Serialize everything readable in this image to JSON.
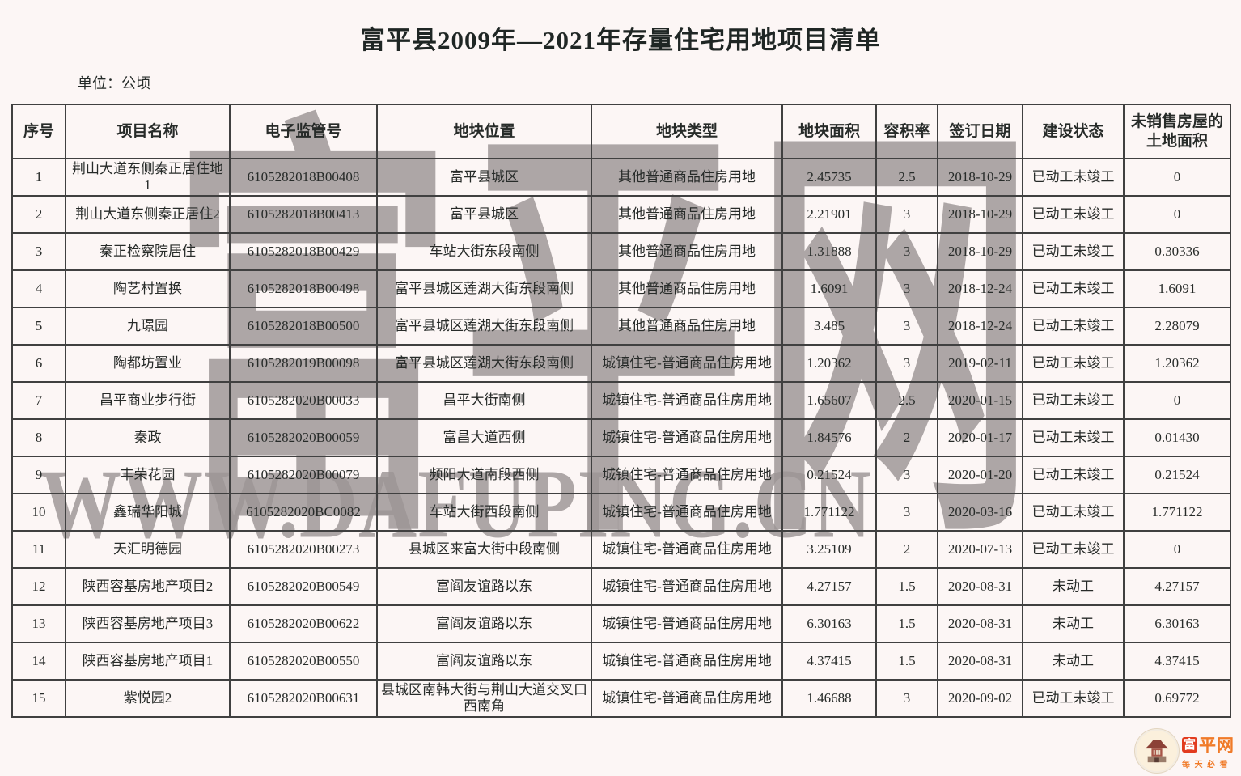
{
  "page": {
    "title": "富平县2009年—2021年存量住宅用地项目清单",
    "unit_label": "单位：公顷"
  },
  "watermark": {
    "cn_text": "富平网",
    "url_text": "WWW.DAFUPING.CN"
  },
  "logo": {
    "site_name_first": "富",
    "site_name_rest": "平网",
    "tagline": "每天必看"
  },
  "colors": {
    "background": "#fcf6f5",
    "table_border": "#404040",
    "text": "#272b29",
    "watermark_gray": "#9c9595",
    "logo_orange": "#f07a28",
    "logo_red": "#e23b1f"
  },
  "table": {
    "headers": [
      "序号",
      "项目名称",
      "电子监管号",
      "地块位置",
      "地块类型",
      "地块面积",
      "容积率",
      "签订日期",
      "建设状态",
      "未销售房屋的土地面积"
    ],
    "rows": [
      [
        "1",
        "荆山大道东侧秦正居住地1",
        "6105282018B00408",
        "富平县城区",
        "其他普通商品住房用地",
        "2.45735",
        "2.5",
        "2018-10-29",
        "已动工未竣工",
        "0"
      ],
      [
        "2",
        "荆山大道东侧秦正居住2",
        "6105282018B00413",
        "富平县城区",
        "其他普通商品住房用地",
        "2.21901",
        "3",
        "2018-10-29",
        "已动工未竣工",
        "0"
      ],
      [
        "3",
        "秦正检察院居住",
        "6105282018B00429",
        "车站大街东段南侧",
        "其他普通商品住房用地",
        "1.31888",
        "3",
        "2018-10-29",
        "已动工未竣工",
        "0.30336"
      ],
      [
        "4",
        "陶艺村置换",
        "6105282018B00498",
        "富平县城区莲湖大街东段南侧",
        "其他普通商品住房用地",
        "1.6091",
        "3",
        "2018-12-24",
        "已动工未竣工",
        "1.6091"
      ],
      [
        "5",
        "九璟园",
        "6105282018B00500",
        "富平县城区莲湖大街东段南侧",
        "其他普通商品住房用地",
        "3.485",
        "3",
        "2018-12-24",
        "已动工未竣工",
        "2.28079"
      ],
      [
        "6",
        "陶都坊置业",
        "6105282019B00098",
        "富平县城区莲湖大街东段南侧",
        "城镇住宅-普通商品住房用地",
        "1.20362",
        "3",
        "2019-02-11",
        "已动工未竣工",
        "1.20362"
      ],
      [
        "7",
        "昌平商业步行街",
        "6105282020B00033",
        "昌平大街南侧",
        "城镇住宅-普通商品住房用地",
        "1.65607",
        "2.5",
        "2020-01-15",
        "已动工未竣工",
        "0"
      ],
      [
        "8",
        "秦政",
        "6105282020B00059",
        "富昌大道西侧",
        "城镇住宅-普通商品住房用地",
        "1.84576",
        "2",
        "2020-01-17",
        "已动工未竣工",
        "0.01430"
      ],
      [
        "9",
        "丰荣花园",
        "6105282020B00079",
        "频阳大道南段西侧",
        "城镇住宅-普通商品住房用地",
        "0.21524",
        "3",
        "2020-01-20",
        "已动工未竣工",
        "0.21524"
      ],
      [
        "10",
        "鑫瑞华阳城",
        "6105282020BC0082",
        "车站大街西段南侧",
        "城镇住宅-普通商品住房用地",
        "1.771122",
        "3",
        "2020-03-16",
        "已动工未竣工",
        "1.771122"
      ],
      [
        "11",
        "天汇明德园",
        "6105282020B00273",
        "县城区来富大街中段南侧",
        "城镇住宅-普通商品住房用地",
        "3.25109",
        "2",
        "2020-07-13",
        "已动工未竣工",
        "0"
      ],
      [
        "12",
        "陕西容基房地产项目2",
        "6105282020B00549",
        "富阎友谊路以东",
        "城镇住宅-普通商品住房用地",
        "4.27157",
        "1.5",
        "2020-08-31",
        "未动工",
        "4.27157"
      ],
      [
        "13",
        "陕西容基房地产项目3",
        "6105282020B00622",
        "富阎友谊路以东",
        "城镇住宅-普通商品住房用地",
        "6.30163",
        "1.5",
        "2020-08-31",
        "未动工",
        "6.30163"
      ],
      [
        "14",
        "陕西容基房地产项目1",
        "6105282020B00550",
        "富阎友谊路以东",
        "城镇住宅-普通商品住房用地",
        "4.37415",
        "1.5",
        "2020-08-31",
        "未动工",
        "4.37415"
      ],
      [
        "15",
        "紫悦园2",
        "6105282020B00631",
        "县城区南韩大街与荆山大道交叉口西南角",
        "城镇住宅-普通商品住房用地",
        "1.46688",
        "3",
        "2020-09-02",
        "已动工未竣工",
        "0.69772"
      ]
    ]
  }
}
